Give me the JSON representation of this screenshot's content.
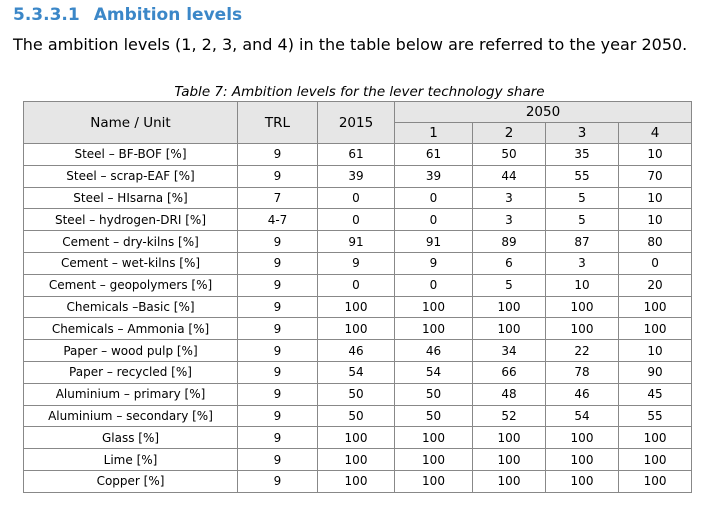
{
  "section": {
    "number": "5.3.3.1",
    "title": "Ambition levels"
  },
  "intro": "The ambition levels (1, 2, 3, and 4) in the table below are referred to the year 2050.",
  "caption": "Table 7: Ambition levels for the lever technology share",
  "table": {
    "headers": {
      "name": "Name / Unit",
      "trl": "TRL",
      "y2015": "2015",
      "y2050": "2050",
      "levels": [
        "1",
        "2",
        "3",
        "4"
      ]
    },
    "rows": [
      [
        "Steel – BF-BOF [%]",
        "9",
        "61",
        "61",
        "50",
        "35",
        "10"
      ],
      [
        "Steel – scrap-EAF [%]",
        "9",
        "39",
        "39",
        "44",
        "55",
        "70"
      ],
      [
        "Steel – HIsarna [%]",
        "7",
        "0",
        "0",
        "3",
        "5",
        "10"
      ],
      [
        "Steel – hydrogen-DRI [%]",
        "4-7",
        "0",
        "0",
        "3",
        "5",
        "10"
      ],
      [
        "Cement – dry-kilns [%]",
        "9",
        "91",
        "91",
        "89",
        "87",
        "80"
      ],
      [
        "Cement – wet-kilns [%]",
        "9",
        "9",
        "9",
        "6",
        "3",
        "0"
      ],
      [
        "Cement – geopolymers [%]",
        "9",
        "0",
        "0",
        "5",
        "10",
        "20"
      ],
      [
        "Chemicals –Basic [%]",
        "9",
        "100",
        "100",
        "100",
        "100",
        "100"
      ],
      [
        "Chemicals – Ammonia [%]",
        "9",
        "100",
        "100",
        "100",
        "100",
        "100"
      ],
      [
        "Paper – wood pulp [%]",
        "9",
        "46",
        "46",
        "34",
        "22",
        "10"
      ],
      [
        "Paper – recycled [%]",
        "9",
        "54",
        "54",
        "66",
        "78",
        "90"
      ],
      [
        "Aluminium – primary [%]",
        "9",
        "50",
        "50",
        "48",
        "46",
        "45"
      ],
      [
        "Aluminium – secondary [%]",
        "9",
        "50",
        "50",
        "52",
        "54",
        "55"
      ],
      [
        "Glass [%]",
        "9",
        "100",
        "100",
        "100",
        "100",
        "100"
      ],
      [
        "Lime [%]",
        "9",
        "100",
        "100",
        "100",
        "100",
        "100"
      ],
      [
        "Copper [%]",
        "9",
        "100",
        "100",
        "100",
        "100",
        "100"
      ]
    ]
  }
}
